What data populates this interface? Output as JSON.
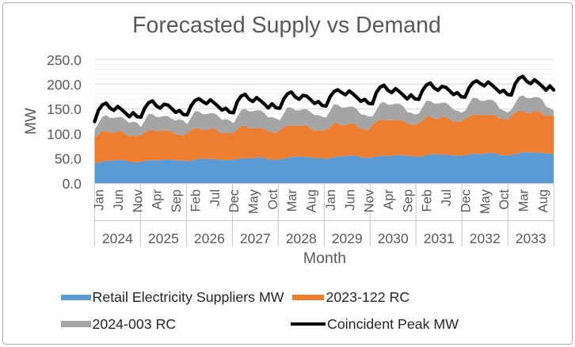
{
  "chart_data": {
    "type": "area-stacked-with-line",
    "title": "Forecasted Supply vs Demand",
    "xlabel": "Month",
    "ylabel": "MW",
    "x_unit": "month",
    "x_range": [
      "Jan 2024",
      "Dec 2033"
    ],
    "n_points": 120,
    "ylim": [
      0,
      250
    ],
    "y_major_step": 50,
    "y_minor_step": 10,
    "y_tick_labels": [
      "0.0",
      "50.0",
      "100.0",
      "150.0",
      "200.0",
      "250.0"
    ],
    "x_tick_months": [
      {
        "i": 0,
        "label": "Jan"
      },
      {
        "i": 5,
        "label": "Jun"
      },
      {
        "i": 10,
        "label": "Nov"
      },
      {
        "i": 15,
        "label": "Apr"
      },
      {
        "i": 20,
        "label": "Sep"
      },
      {
        "i": 25,
        "label": "Feb"
      },
      {
        "i": 30,
        "label": "Jul"
      },
      {
        "i": 35,
        "label": "Dec"
      },
      {
        "i": 40,
        "label": "May"
      },
      {
        "i": 45,
        "label": "Oct"
      },
      {
        "i": 50,
        "label": "Mar"
      },
      {
        "i": 55,
        "label": "Aug"
      },
      {
        "i": 60,
        "label": "Jan"
      },
      {
        "i": 65,
        "label": "Jun"
      },
      {
        "i": 70,
        "label": "Nov"
      },
      {
        "i": 75,
        "label": "Apr"
      },
      {
        "i": 80,
        "label": "Sep"
      },
      {
        "i": 85,
        "label": "Feb"
      },
      {
        "i": 90,
        "label": "Jul"
      },
      {
        "i": 95,
        "label": "Dec"
      },
      {
        "i": 100,
        "label": "May"
      },
      {
        "i": 105,
        "label": "Oct"
      },
      {
        "i": 110,
        "label": "Mar"
      },
      {
        "i": 115,
        "label": "Aug"
      }
    ],
    "year_groups": [
      "2024",
      "2025",
      "2026",
      "2027",
      "2028",
      "2029",
      "2030",
      "2031",
      "2032",
      "2033"
    ],
    "legend_position": "bottom",
    "gridlines": {
      "major": "#d9d9d9",
      "minor": "#efefef",
      "axis_line": "#c6c6c6"
    },
    "series": [
      {
        "name": "Retail Electricity Suppliers MW",
        "type": "area",
        "stack": 1,
        "color": "#5b9bd5",
        "values": [
          40.0,
          41.0,
          43.0,
          45.0,
          45.0,
          45.0,
          47.0,
          47.0,
          46.0,
          42.5,
          42.5,
          41.5,
          43.3,
          44.3,
          46.3,
          45.8,
          45.8,
          45.8,
          47.8,
          47.8,
          46.8,
          45.8,
          45.8,
          44.8,
          44.1,
          45.1,
          47.1,
          49.1,
          49.1,
          49.1,
          48.6,
          48.6,
          47.6,
          46.6,
          46.6,
          45.6,
          47.4,
          48.4,
          50.4,
          49.9,
          49.9,
          49.9,
          51.9,
          51.9,
          50.9,
          47.4,
          47.4,
          46.4,
          48.2,
          49.2,
          51.2,
          53.2,
          53.2,
          53.2,
          52.7,
          52.7,
          51.7,
          50.7,
          50.7,
          49.7,
          49.0,
          50.0,
          52.0,
          54.0,
          54.0,
          54.0,
          56.0,
          56.0,
          55.0,
          51.5,
          51.5,
          50.5,
          52.3,
          53.3,
          55.3,
          54.8,
          54.8,
          54.8,
          56.8,
          56.8,
          55.8,
          54.8,
          54.8,
          53.8,
          53.1,
          54.1,
          56.1,
          58.1,
          58.1,
          58.1,
          57.6,
          57.6,
          56.6,
          55.6,
          55.6,
          54.6,
          56.4,
          57.4,
          59.4,
          58.9,
          58.9,
          58.9,
          60.9,
          60.9,
          59.9,
          56.4,
          56.4,
          55.4,
          57.2,
          58.2,
          60.2,
          62.2,
          62.2,
          62.2,
          61.7,
          61.7,
          60.7,
          59.7,
          59.7,
          58.7
        ]
      },
      {
        "name": "2023-122 RC",
        "type": "area",
        "stack": 2,
        "color": "#ed7d31",
        "values": [
          52.5,
          56.5,
          62.5,
          60.5,
          56.0,
          56.0,
          58.0,
          58.0,
          53.5,
          52.0,
          54.0,
          53.0,
          53.7,
          57.7,
          60.2,
          60.7,
          59.7,
          59.7,
          58.2,
          58.2,
          57.2,
          53.2,
          51.7,
          50.7,
          57.4,
          61.4,
          63.9,
          61.9,
          57.4,
          57.4,
          61.9,
          61.9,
          57.4,
          53.4,
          55.4,
          54.4,
          55.1,
          59.1,
          65.1,
          65.6,
          61.1,
          61.1,
          59.6,
          59.6,
          58.6,
          57.1,
          55.6,
          54.6,
          58.8,
          62.8,
          65.3,
          63.3,
          62.3,
          62.3,
          63.3,
          63.3,
          58.8,
          54.8,
          56.8,
          55.8,
          59.0,
          63.0,
          69.0,
          67.0,
          62.5,
          62.5,
          64.5,
          64.5,
          60.0,
          58.5,
          57.0,
          56.0,
          66.2,
          70.2,
          72.7,
          73.2,
          72.2,
          72.2,
          70.7,
          70.7,
          69.7,
          65.7,
          64.2,
          63.2,
          68.4,
          72.4,
          78.4,
          76.4,
          71.9,
          71.9,
          76.4,
          76.4,
          71.9,
          67.9,
          69.9,
          68.9,
          72.6,
          76.6,
          79.1,
          79.6,
          78.6,
          78.6,
          77.1,
          77.1,
          76.1,
          74.6,
          73.1,
          72.1,
          79.3,
          83.3,
          85.8,
          83.8,
          79.3,
          79.3,
          83.8,
          83.8,
          79.3,
          75.3,
          77.3,
          76.3
        ]
      },
      {
        "name": "2024-003 RC",
        "type": "area",
        "stack": 3,
        "color": "#a5a5a5",
        "values": [
          15.0,
          23.0,
          28.5,
          31.5,
          30.5,
          30.5,
          28.4,
          28.4,
          28.4,
          26.8,
          27.8,
          27.8,
          16.2,
          24.2,
          33.2,
          32.6,
          28.1,
          28.1,
          29.5,
          29.5,
          26.0,
          27.2,
          31.0,
          30.7,
          17.4,
          25.4,
          34.4,
          33.8,
          32.8,
          32.8,
          30.7,
          30.7,
          30.7,
          27.5,
          27.1,
          26.5,
          18.5,
          26.5,
          32.0,
          35.0,
          34.0,
          34.0,
          35.4,
          35.4,
          31.9,
          27.9,
          30.3,
          29.4,
          19.7,
          27.7,
          36.7,
          36.1,
          31.6,
          31.6,
          33.0,
          33.0,
          33.0,
          31.8,
          30.0,
          28.8,
          24.4,
          32.4,
          37.9,
          37.3,
          36.3,
          36.3,
          34.2,
          34.2,
          34.2,
          28.6,
          29.6,
          28.1,
          16.0,
          24.0,
          33.0,
          36.0,
          31.5,
          31.5,
          32.9,
          32.9,
          29.4,
          23.0,
          23.3,
          21.5,
          18.7,
          26.7,
          32.2,
          31.6,
          30.6,
          30.6,
          28.5,
          28.5,
          28.5,
          24.9,
          21.0,
          18.9,
          16.9,
          24.9,
          33.9,
          33.3,
          28.8,
          28.8,
          30.2,
          30.2,
          26.7,
          18.7,
          17.6,
          15.2,
          11.5,
          19.5,
          28.5,
          31.5,
          30.5,
          30.5,
          28.4,
          28.4,
          28.4,
          19.6,
          14.3,
          11.6
        ]
      },
      {
        "name": "Coincident Peak MW",
        "type": "line",
        "color": "#000000",
        "values": [
          124.1,
          146.9,
          157.8,
          161.7,
          151.6,
          146.9,
          154.8,
          148.7,
          141.6,
          133.9,
          142.3,
          134.2,
          133.1,
          151.4,
          162.3,
          166.2,
          156.1,
          151.4,
          159.3,
          157.7,
          150.6,
          142.9,
          146.8,
          138.7,
          137.6,
          155.9,
          166.8,
          170.7,
          165.1,
          160.4,
          168.3,
          162.2,
          155.1,
          147.4,
          151.3,
          143.2,
          142.1,
          164.9,
          175.8,
          179.7,
          169.6,
          164.9,
          172.8,
          166.7,
          159.6,
          151.9,
          160.3,
          152.2,
          151.1,
          169.4,
          180.3,
          184.2,
          174.1,
          169.4,
          177.3,
          175.7,
          168.6,
          160.9,
          164.8,
          156.7,
          155.6,
          173.9,
          184.8,
          188.7,
          183.1,
          178.4,
          186.3,
          180.2,
          173.1,
          165.4,
          169.3,
          161.2,
          160.1,
          182.9,
          193.8,
          197.7,
          187.6,
          182.9,
          190.8,
          184.7,
          177.6,
          169.9,
          178.3,
          170.2,
          169.1,
          187.4,
          198.3,
          202.2,
          192.1,
          187.4,
          195.3,
          193.7,
          186.6,
          178.9,
          182.8,
          174.7,
          173.6,
          191.9,
          202.8,
          206.7,
          201.1,
          196.4,
          204.3,
          198.2,
          191.1,
          183.4,
          187.3,
          179.2,
          178.1,
          200.9,
          211.8,
          215.7,
          205.6,
          200.9,
          208.8,
          202.7,
          195.6,
          187.9,
          196.3,
          188.2
        ]
      }
    ]
  },
  "frame": {
    "border_color": "#ababab",
    "background": "#ffffff"
  },
  "text_colors": {
    "title": "#595959",
    "axis_labels": "#595959",
    "legend": "#262626"
  }
}
